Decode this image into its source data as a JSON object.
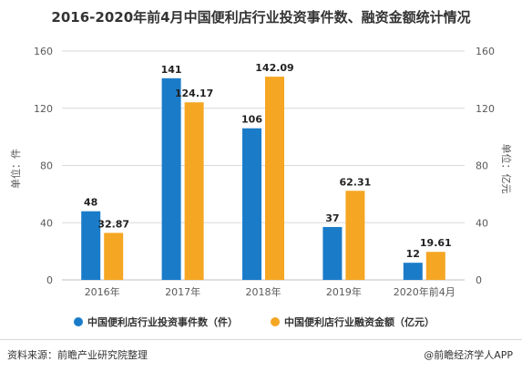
{
  "title": "2016-2020年前4月中国便利店行业投资事件数、融资金额统计情况",
  "source": "资料来源：前瞻产业研究院整理",
  "brand": "@前瞻经济学人APP",
  "colors": {
    "events": "#1a7cc9",
    "amount": "#f5a623",
    "grid": "#d9d9d9",
    "axis": "#bfbfbf"
  },
  "chart_data": {
    "type": "bar",
    "categories": [
      "2016年",
      "2017年",
      "2018年",
      "2019年",
      "2020年前4月"
    ],
    "series": [
      {
        "name": "中国便利店行业投资事件数（件）",
        "axis": "left",
        "values": [
          48,
          141,
          106,
          37,
          12
        ]
      },
      {
        "name": "中国便利店行业融资金额（亿元）",
        "axis": "right",
        "values": [
          32.87,
          124.17,
          142.09,
          62.31,
          19.61
        ]
      }
    ],
    "data_labels": [
      [
        "48",
        "141",
        "106",
        "37",
        "12"
      ],
      [
        "32.87",
        "124.17",
        "142.09",
        "62.31",
        "19.61"
      ]
    ],
    "ylabel_left": "单位：件",
    "ylabel_right": "单位：亿元",
    "ylim": [
      0,
      160
    ],
    "yticks": [
      0,
      40,
      80,
      120,
      160
    ],
    "grid": true,
    "legend_position": "bottom"
  }
}
